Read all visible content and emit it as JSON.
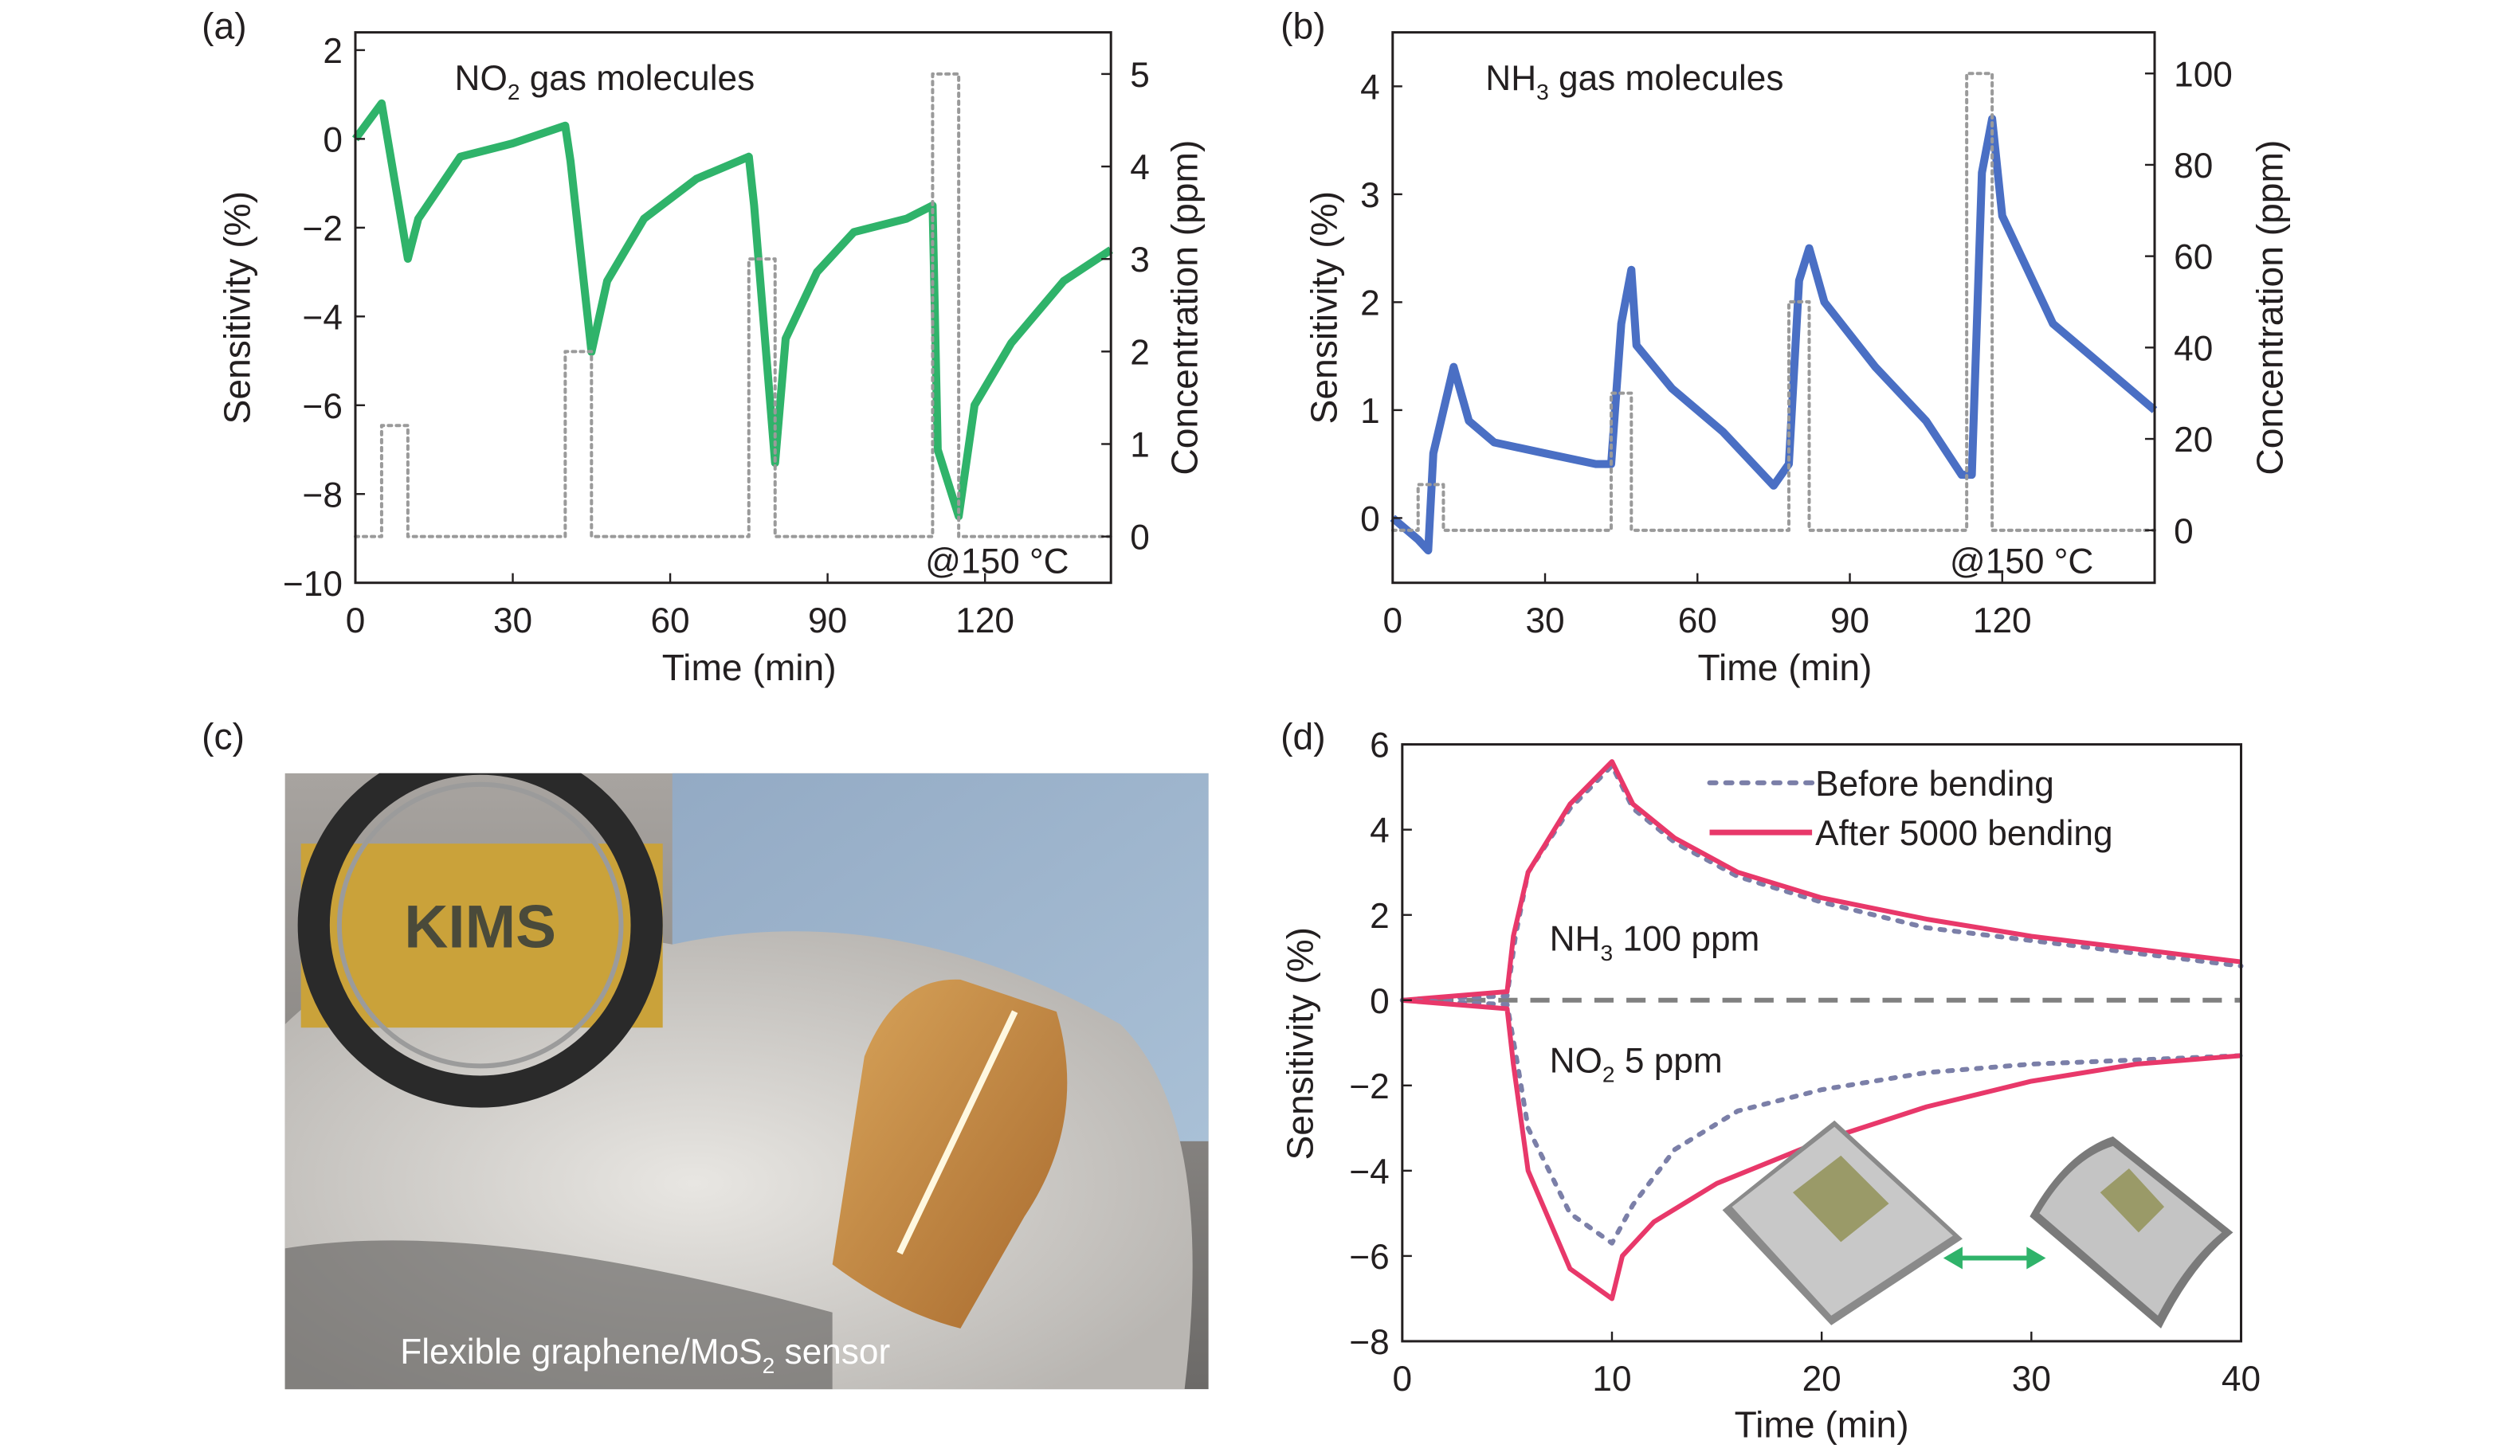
{
  "panel_labels": [
    "(a)",
    "(b)",
    "(c)",
    "(d)"
  ],
  "photo": {
    "caption_main": "Flexible graphene/MoS",
    "caption_sub": "2",
    "caption_rest": " sensor",
    "logo_text": "KIMS"
  },
  "chart_data": [
    {
      "type": "line",
      "panel": "(a)",
      "annotation": {
        "main": "NO",
        "sub": "2",
        "rest": " gas molecules"
      },
      "temperature_note": "@150 °C",
      "xlabel": "Time (min)",
      "ylabel": "Sensitivity (%)",
      "y2label": "Concentration (ppm)",
      "xlim": [
        0,
        144
      ],
      "ylim": [
        -10,
        2.4
      ],
      "y2lim": [
        -0.5,
        5.45
      ],
      "x_ticks": [
        0,
        30,
        60,
        90,
        120
      ],
      "y_ticks": [
        2,
        0,
        -2,
        -4,
        -6,
        -8,
        -10
      ],
      "y2_ticks": [
        0,
        1,
        2,
        3,
        4,
        5
      ],
      "series": [
        {
          "axis": "left",
          "color": "#2fb36a",
          "style": "solid",
          "x": [
            0,
            5,
            10,
            12,
            20,
            30,
            40,
            41,
            45,
            48,
            55,
            65,
            75,
            76,
            80,
            82,
            88,
            95,
            105,
            110,
            111,
            115,
            118,
            125,
            135,
            144
          ],
          "y": [
            0,
            0.8,
            -2.7,
            -1.8,
            -0.4,
            -0.1,
            0.3,
            -0.5,
            -4.8,
            -3.2,
            -1.8,
            -0.9,
            -0.4,
            -1.5,
            -7.3,
            -4.5,
            -3.0,
            -2.1,
            -1.8,
            -1.5,
            -7.0,
            -8.5,
            -6.0,
            -4.6,
            -3.2,
            -2.5
          ]
        },
        {
          "axis": "right",
          "color": "#9a9a9a",
          "style": "dotted",
          "x": [
            0,
            5,
            5,
            10,
            10,
            40,
            40,
            45,
            45,
            75,
            75,
            80,
            80,
            110,
            110,
            115,
            115,
            144
          ],
          "y": [
            0,
            0,
            1.2,
            1.2,
            0,
            0,
            2,
            2,
            0,
            0,
            3,
            3,
            0,
            0,
            5,
            5,
            0,
            0
          ]
        }
      ]
    },
    {
      "type": "line",
      "panel": "(b)",
      "annotation": {
        "main": "NH",
        "sub": "3",
        "rest": " gas molecules"
      },
      "temperature_note": "@150 °C",
      "xlabel": "Time (min)",
      "ylabel": "Sensitivity (%)",
      "y2label": "Concentration (ppm)",
      "xlim": [
        0,
        150
      ],
      "ylim": [
        -0.6,
        4.5
      ],
      "y2lim": [
        -11.5,
        109
      ],
      "x_ticks": [
        0,
        30,
        60,
        90,
        120
      ],
      "y_ticks": [
        4,
        3,
        2,
        1,
        0
      ],
      "y2_ticks": [
        0,
        20,
        40,
        60,
        80,
        100
      ],
      "series": [
        {
          "axis": "left",
          "color": "#4a6fc4",
          "style": "solid",
          "x": [
            0,
            5,
            7,
            8,
            12,
            15,
            20,
            30,
            40,
            43,
            45,
            47,
            48,
            55,
            65,
            75,
            78,
            80,
            82,
            85,
            95,
            105,
            112,
            114,
            116,
            118,
            120,
            130,
            140,
            150
          ],
          "y": [
            0,
            -0.2,
            -0.3,
            0.6,
            1.4,
            0.9,
            0.7,
            0.6,
            0.5,
            0.5,
            1.8,
            2.3,
            1.6,
            1.2,
            0.8,
            0.3,
            0.5,
            2.2,
            2.5,
            2.0,
            1.4,
            0.9,
            0.4,
            0.4,
            3.2,
            3.7,
            2.8,
            1.8,
            1.4,
            1.0
          ]
        },
        {
          "axis": "right",
          "color": "#9a9a9a",
          "style": "dotted",
          "x": [
            0,
            5,
            5,
            10,
            10,
            43,
            43,
            47,
            47,
            78,
            78,
            82,
            82,
            113,
            113,
            118,
            118,
            150
          ],
          "y": [
            0,
            0,
            10,
            10,
            0,
            0,
            30,
            30,
            0,
            0,
            50,
            50,
            0,
            0,
            100,
            100,
            0,
            0
          ]
        }
      ]
    },
    {
      "type": "line",
      "panel": "(d)",
      "xlabel": "Time (min)",
      "ylabel": "Sensitivity (%)",
      "xlim": [
        0,
        40
      ],
      "ylim": [
        -8,
        6
      ],
      "x_ticks": [
        0,
        10,
        20,
        30,
        40
      ],
      "y_ticks": [
        6,
        4,
        2,
        0,
        -2,
        -4,
        -6,
        -8
      ],
      "annotations": [
        {
          "main": "NH",
          "sub": "3",
          "rest": " 100 ppm"
        },
        {
          "main": "NO",
          "sub": "2",
          "rest": " 5 ppm"
        }
      ],
      "legend": {
        "position": "top-right",
        "entries": [
          "Before bending",
          "After 5000 bending"
        ]
      },
      "baseline": {
        "y": 0,
        "color": "#808080",
        "style": "dashed"
      },
      "series": [
        {
          "name": "Before bending",
          "gas": "NH3",
          "color": "#7b7fa8",
          "style": "dotted",
          "x": [
            0,
            5,
            5.4,
            6,
            8,
            10,
            11,
            13,
            16,
            20,
            25,
            30,
            35,
            40
          ],
          "y": [
            0,
            0.1,
            1.5,
            3.0,
            4.5,
            5.5,
            4.5,
            3.7,
            2.9,
            2.3,
            1.7,
            1.4,
            1.1,
            0.8
          ]
        },
        {
          "name": "After 5000 bending",
          "gas": "NH3",
          "color": "#e8386a",
          "style": "solid",
          "x": [
            0,
            5,
            5.3,
            6,
            8,
            10,
            11,
            13,
            16,
            20,
            25,
            30,
            35,
            40
          ],
          "y": [
            0,
            0.2,
            1.5,
            3.0,
            4.6,
            5.6,
            4.6,
            3.8,
            3.0,
            2.4,
            1.9,
            1.5,
            1.2,
            0.9
          ]
        },
        {
          "name": "Before bending",
          "gas": "NO2",
          "color": "#7b7fa8",
          "style": "dotted",
          "x": [
            0,
            5,
            5.5,
            6,
            8,
            10,
            11,
            13,
            16,
            20,
            25,
            30,
            35,
            40
          ],
          "y": [
            0,
            -0.1,
            -1.5,
            -3.0,
            -5.0,
            -5.7,
            -4.8,
            -3.5,
            -2.6,
            -2.1,
            -1.7,
            -1.5,
            -1.4,
            -1.3
          ]
        },
        {
          "name": "After 5000 bending",
          "gas": "NO2",
          "color": "#e8386a",
          "style": "solid",
          "x": [
            0,
            5,
            5.3,
            6,
            8,
            10,
            10.5,
            12,
            15,
            20,
            25,
            30,
            35,
            40
          ],
          "y": [
            0,
            -0.2,
            -1.5,
            -4.0,
            -6.3,
            -7.0,
            -6.0,
            -5.2,
            -4.3,
            -3.3,
            -2.5,
            -1.9,
            -1.5,
            -1.3
          ]
        }
      ]
    }
  ]
}
